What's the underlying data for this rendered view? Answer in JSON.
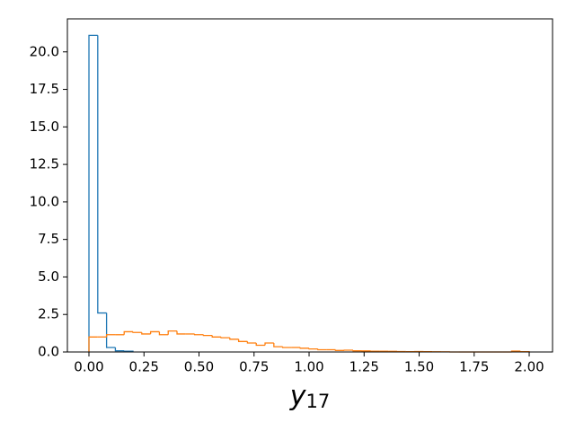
{
  "chart_data": {
    "type": "histogram",
    "xlabel": "y",
    "xlabel_sub": "17",
    "xlim": [
      -0.098,
      2.106
    ],
    "ylim": [
      0,
      22.2
    ],
    "xticks": [
      {
        "value": 0,
        "label": "0.00"
      },
      {
        "value": 0.25,
        "label": "0.25"
      },
      {
        "value": 0.5,
        "label": "0.50"
      },
      {
        "value": 0.75,
        "label": "0.75"
      },
      {
        "value": 1,
        "label": "1.00"
      },
      {
        "value": 1.25,
        "label": "1.25"
      },
      {
        "value": 1.5,
        "label": "1.50"
      },
      {
        "value": 1.75,
        "label": "1.75"
      },
      {
        "value": 2,
        "label": "2.00"
      }
    ],
    "yticks": [
      {
        "value": 0,
        "label": "0.0"
      },
      {
        "value": 2.5,
        "label": "2.5"
      },
      {
        "value": 5,
        "label": "5.0"
      },
      {
        "value": 7.5,
        "label": "7.5"
      },
      {
        "value": 10,
        "label": "10.0"
      },
      {
        "value": 12.5,
        "label": "12.5"
      },
      {
        "value": 15,
        "label": "15.0"
      },
      {
        "value": 17.5,
        "label": "17.5"
      },
      {
        "value": 20,
        "label": "20.0"
      }
    ],
    "series": [
      {
        "color": "#1f77b4",
        "bins": [
          0,
          0.04,
          0.08,
          0.12,
          0.16,
          0.2
        ],
        "values": [
          21.1,
          2.6,
          0.3,
          0.08,
          0.05
        ]
      },
      {
        "color": "#ff7f0e",
        "bins": [
          0,
          0.04,
          0.08,
          0.12,
          0.16,
          0.2,
          0.24,
          0.28,
          0.32,
          0.36,
          0.4,
          0.44,
          0.48,
          0.52,
          0.56,
          0.6,
          0.64,
          0.68,
          0.72,
          0.76,
          0.8,
          0.84,
          0.88,
          0.92,
          0.96,
          1.0,
          1.04,
          1.08,
          1.12,
          1.16,
          1.2,
          1.24,
          1.28,
          1.32,
          1.36,
          1.4,
          1.44,
          1.48,
          1.52,
          1.56,
          1.6,
          1.64,
          1.68,
          1.72,
          1.76,
          1.8,
          1.84,
          1.88,
          1.92,
          1.96,
          2.0
        ],
        "values": [
          1.0,
          1.0,
          1.15,
          1.15,
          1.35,
          1.3,
          1.2,
          1.35,
          1.15,
          1.4,
          1.2,
          1.2,
          1.15,
          1.1,
          1.0,
          0.95,
          0.85,
          0.7,
          0.6,
          0.45,
          0.6,
          0.35,
          0.3,
          0.3,
          0.25,
          0.2,
          0.15,
          0.15,
          0.1,
          0.12,
          0.08,
          0.07,
          0.05,
          0.05,
          0.04,
          0.03,
          0.02,
          0.03,
          0.02,
          0.01,
          0.01,
          0,
          0,
          0,
          0,
          0,
          0,
          0,
          0.06,
          0.02
        ]
      }
    ]
  }
}
